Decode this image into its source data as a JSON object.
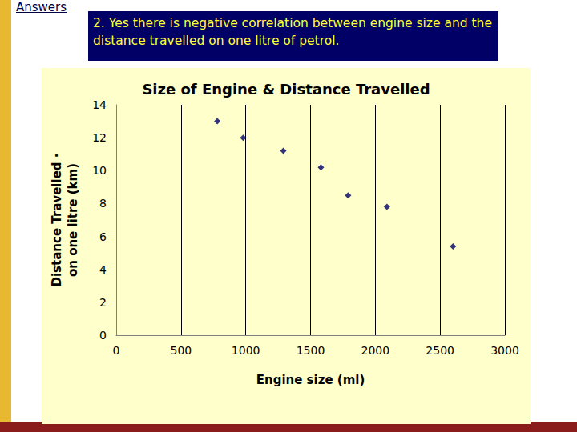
{
  "chart_data": {
    "type": "scatter",
    "title": "Size of Engine & Distance Travelled",
    "x_label": "Engine size (ml)",
    "y_label": "Distance Travelled ·\non one litre (km)",
    "annotations": [
      "Answers",
      "2. Yes there is negative correlation between engine size and the distance travelled on one litre of petrol."
    ],
    "x": [
      780,
      980,
      1290,
      1580,
      1790,
      2090,
      2600
    ],
    "values": [
      13,
      12,
      11.2,
      10.2,
      8.5,
      7.8,
      5.4
    ],
    "color": "#000066",
    "marker": "diamond",
    "xlim": [
      0,
      3000
    ],
    "xticks": [
      0,
      500,
      1000,
      1500,
      2000,
      2500,
      3000
    ],
    "ylim": [
      0,
      14
    ],
    "yticks": [
      0,
      2,
      4,
      6,
      8,
      10,
      12,
      14
    ],
    "grid": true
  }
}
